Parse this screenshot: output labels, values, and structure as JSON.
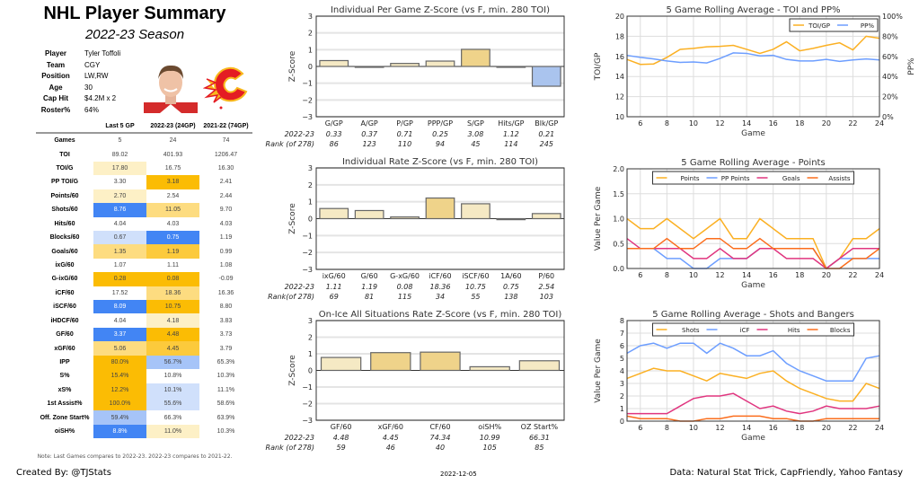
{
  "header": {
    "title": "NHL Player Summary",
    "season": "2022-23 Season"
  },
  "player_info": [
    {
      "label": "Player",
      "value": "Tyler Toffoli"
    },
    {
      "label": "Team",
      "value": "CGY"
    },
    {
      "label": "Position",
      "value": "LW,RW"
    },
    {
      "label": "Age",
      "value": "30"
    },
    {
      "label": "Cap Hit",
      "value": "$4.2M x 2"
    },
    {
      "label": "Roster%",
      "value": "64%"
    }
  ],
  "team_logo": "calgary-flames-logo",
  "table": {
    "columns": [
      "",
      "Last 5 GP",
      "2022-23 (24GP)",
      "2021-22 (74GP)"
    ],
    "rows": [
      {
        "label": "Games",
        "values": [
          "5",
          "24",
          "74"
        ],
        "colors": [
          null,
          null,
          null
        ]
      },
      {
        "label": "TOI",
        "values": [
          "89.02",
          "401.93",
          "1206.47"
        ],
        "colors": [
          null,
          null,
          null
        ]
      },
      {
        "label": "TOI/G",
        "values": [
          "17.80",
          "16.75",
          "16.30"
        ],
        "colors": [
          "#fdf0c6",
          null,
          null
        ]
      },
      {
        "label": "PP TOI/G",
        "values": [
          "3.30",
          "3.18",
          "2.41"
        ],
        "colors": [
          null,
          "#fbbc04",
          null
        ]
      },
      {
        "label": "Points/60",
        "values": [
          "2.70",
          "2.54",
          "2.44"
        ],
        "colors": [
          "#fdf0c6",
          null,
          null
        ]
      },
      {
        "label": "Shots/60",
        "values": [
          "8.76",
          "11.05",
          "9.70"
        ],
        "colors": [
          "#4285f4",
          "#fddc80",
          null
        ]
      },
      {
        "label": "Hits/60",
        "values": [
          "4.04",
          "4.03",
          "4.03"
        ],
        "colors": [
          null,
          null,
          null
        ]
      },
      {
        "label": "Blocks/60",
        "values": [
          "0.67",
          "0.75",
          "1.19"
        ],
        "colors": [
          "#d0e0fb",
          "#4285f4",
          null
        ]
      },
      {
        "label": "Goals/60",
        "values": [
          "1.35",
          "1.19",
          "0.99"
        ],
        "colors": [
          "#fddc80",
          "#fcca3c",
          null
        ]
      },
      {
        "label": "ixG/60",
        "values": [
          "1.07",
          "1.11",
          "1.08"
        ],
        "colors": [
          null,
          null,
          null
        ]
      },
      {
        "label": "G-ixG/60",
        "values": [
          "0.28",
          "0.08",
          "-0.09"
        ],
        "colors": [
          "#fbbc04",
          "#fbbc04",
          null
        ]
      },
      {
        "label": "iCF/60",
        "values": [
          "17.52",
          "18.36",
          "16.36"
        ],
        "colors": [
          null,
          "#fddc80",
          null
        ]
      },
      {
        "label": "iSCF/60",
        "values": [
          "8.09",
          "10.75",
          "8.80"
        ],
        "colors": [
          "#4285f4",
          "#fbbc04",
          null
        ]
      },
      {
        "label": "iHDCF/60",
        "values": [
          "4.04",
          "4.18",
          "3.83"
        ],
        "colors": [
          null,
          "#fdf0c6",
          null
        ]
      },
      {
        "label": "GF/60",
        "values": [
          "3.37",
          "4.48",
          "3.73"
        ],
        "colors": [
          "#4285f4",
          "#fbbc04",
          null
        ]
      },
      {
        "label": "xGF/60",
        "values": [
          "5.06",
          "4.45",
          "3.79"
        ],
        "colors": [
          "#fddc80",
          "#fcca3c",
          null
        ]
      },
      {
        "label": "IPP",
        "values": [
          "80.0%",
          "56.7%",
          "65.3%"
        ],
        "colors": [
          "#fbbc04",
          "#a6c4f8",
          null
        ]
      },
      {
        "label": "S%",
        "values": [
          "15.4%",
          "10.8%",
          "10.3%"
        ],
        "colors": [
          "#fbbc04",
          null,
          null
        ]
      },
      {
        "label": "xS%",
        "values": [
          "12.2%",
          "10.1%",
          "11.1%"
        ],
        "colors": [
          "#fbbc04",
          "#d0e0fb",
          null
        ]
      },
      {
        "label": "1st Assist%",
        "values": [
          "100.0%",
          "55.6%",
          "58.6%"
        ],
        "colors": [
          "#fbbc04",
          "#d0e0fb",
          null
        ]
      },
      {
        "label": "Off. Zone Start%",
        "values": [
          "59.4%",
          "66.3%",
          "63.9%"
        ],
        "colors": [
          "#a6c4f8",
          null,
          null
        ]
      },
      {
        "label": "oiSH%",
        "values": [
          "8.8%",
          "11.0%",
          "10.3%"
        ],
        "colors": [
          "#4285f4",
          "#fdf0c6",
          null
        ]
      }
    ],
    "note": "Note: Last Games compares to 2022-23. 2022-23 compares to 2021-22."
  },
  "footer": {
    "credit": "Created By: @TJStats",
    "date": "2022-12-05",
    "source": "Data: Natural Stat Trick, CapFriendly, Yahoo Fantasy"
  },
  "chart_data": [
    {
      "type": "bar",
      "title": "Individual Per Game Z-Score (vs F, min. 280 TOI)",
      "ylabel": "Z-Score",
      "ylim": [
        -3,
        3
      ],
      "grid": true,
      "categories": [
        "G/GP",
        "A/GP",
        "P/GP",
        "PPP/GP",
        "S/GP",
        "Hits/GP",
        "Blk/GP"
      ],
      "values": [
        0.35,
        -0.05,
        0.18,
        0.32,
        1.02,
        0,
        -1.18
      ],
      "colors": [
        "#f5e9c4",
        "#555555",
        "#f5e9c4",
        "#f5e9c4",
        "#efd38a",
        "#f5e9c4",
        "#aac4ee"
      ],
      "row_labels": [
        "2022-23",
        "Rank (of 278)"
      ],
      "stat_values": [
        "0.33",
        "0.37",
        "0.71",
        "0.25",
        "3.08",
        "1.12",
        "0.21"
      ],
      "ranks": [
        "86",
        "123",
        "110",
        "94",
        "45",
        "114",
        "245"
      ]
    },
    {
      "type": "bar",
      "title": "Individual Rate Z-Score (vs F, min. 280 TOI)",
      "ylabel": "Z-Score",
      "ylim": [
        -3,
        3
      ],
      "grid": true,
      "categories": [
        "ixG/60",
        "G/60",
        "G-xG/60",
        "iCF/60",
        "iSCF/60",
        "1A/60",
        "P/60"
      ],
      "values": [
        0.6,
        0.48,
        0.1,
        1.22,
        0.88,
        -0.06,
        0.3
      ],
      "colors": [
        "#f5e9c4",
        "#f5e9c4",
        "#f5e9c4",
        "#efd38a",
        "#f5e9c4",
        "#555555",
        "#f5e9c4"
      ],
      "row_labels": [
        "2022-23",
        "Rank(of 278)"
      ],
      "stat_values": [
        "1.11",
        "1.19",
        "0.08",
        "18.36",
        "10.75",
        "0.75",
        "2.54"
      ],
      "ranks": [
        "69",
        "81",
        "115",
        "34",
        "55",
        "138",
        "103"
      ]
    },
    {
      "type": "bar",
      "title": "On-Ice All Situations Rate Z-Score (vs F, min. 280 TOI)",
      "ylabel": "Z-Score",
      "ylim": [
        -3,
        3
      ],
      "grid": true,
      "categories": [
        "GF/60",
        "xGF/60",
        "CF/60",
        "oiSH%",
        "OZ Start%"
      ],
      "values": [
        0.78,
        1.07,
        1.1,
        0.22,
        0.58
      ],
      "colors": [
        "#f5e9c4",
        "#efd38a",
        "#efd38a",
        "#f5e9c4",
        "#f5e9c4"
      ],
      "row_labels": [
        "2022-23",
        "Rank (of 278)"
      ],
      "stat_values": [
        "4.48",
        "4.45",
        "74.34",
        "10.99",
        "66.31"
      ],
      "ranks": [
        "59",
        "46",
        "40",
        "105",
        "85"
      ]
    },
    {
      "type": "line",
      "title": "5 Game Rolling Average - TOI and PP%",
      "xlabel": "Game",
      "ylabel": "TOI/GP",
      "y2label": "PP%",
      "xlim": [
        5,
        24
      ],
      "ylim": [
        10,
        20
      ],
      "y2lim": [
        0,
        100
      ],
      "grid": true,
      "legend": "top-right",
      "xticks": [
        6,
        8,
        10,
        12,
        14,
        16,
        18,
        20,
        22,
        24
      ],
      "yticks": [
        10,
        12,
        14,
        16,
        18,
        20
      ],
      "y2ticks": [
        "0%",
        "20%",
        "40%",
        "60%",
        "80%",
        "100%"
      ],
      "x": [
        5,
        6,
        7,
        8,
        9,
        10,
        11,
        12,
        13,
        14,
        15,
        16,
        17,
        18,
        19,
        20,
        21,
        22,
        23,
        24
      ],
      "series": [
        {
          "name": "TOI/GP",
          "color": "#fbb023",
          "axis": "left",
          "values": [
            15.7,
            15.2,
            15.25,
            15.9,
            16.7,
            16.8,
            16.95,
            17.0,
            17.1,
            16.7,
            16.3,
            16.7,
            17.45,
            16.55,
            16.8,
            17.1,
            17.35,
            16.65,
            18.0,
            17.8
          ]
        },
        {
          "name": "PP%",
          "color": "#6d9eff",
          "axis": "right",
          "values": [
            61,
            59,
            57.5,
            55.5,
            54,
            54.5,
            53.5,
            58,
            63.5,
            63,
            60.5,
            61,
            57,
            55.5,
            55.5,
            57,
            55,
            56.5,
            57.5,
            56.5
          ]
        }
      ]
    },
    {
      "type": "line",
      "title": "5 Game Rolling Average - Points",
      "xlabel": "Game",
      "ylabel": "Value Per Game",
      "xlim": [
        5,
        24
      ],
      "ylim": [
        0,
        2
      ],
      "grid": true,
      "legend": "top-center",
      "xticks": [
        6,
        8,
        10,
        12,
        14,
        16,
        18,
        20,
        22,
        24
      ],
      "yticks": [
        "0.0",
        "0.5",
        "1.0",
        "1.5",
        "2.0"
      ],
      "x": [
        5,
        6,
        7,
        8,
        9,
        10,
        11,
        12,
        13,
        14,
        15,
        16,
        17,
        18,
        19,
        20,
        21,
        22,
        23,
        24
      ],
      "series": [
        {
          "name": "Points",
          "color": "#fbb023",
          "values": [
            1.0,
            0.8,
            0.8,
            1.0,
            0.8,
            0.6,
            0.8,
            1.0,
            0.6,
            0.6,
            1.0,
            0.8,
            0.6,
            0.6,
            0.6,
            0.0,
            0.2,
            0.6,
            0.6,
            0.8
          ]
        },
        {
          "name": "PP Points",
          "color": "#6d9eff",
          "values": [
            0.4,
            0.4,
            0.4,
            0.2,
            0.2,
            0.0,
            0.0,
            0.2,
            0.2,
            0.2,
            0.4,
            0.4,
            0.4,
            0.4,
            0.4,
            0.0,
            0.2,
            0.2,
            0.2,
            0.2
          ]
        },
        {
          "name": "Goals",
          "color": "#e0357f",
          "values": [
            0.6,
            0.4,
            0.4,
            0.4,
            0.4,
            0.2,
            0.2,
            0.4,
            0.2,
            0.2,
            0.4,
            0.4,
            0.2,
            0.2,
            0.2,
            0.0,
            0.2,
            0.4,
            0.4,
            0.4
          ]
        },
        {
          "name": "Assists",
          "color": "#fb6d1c",
          "values": [
            0.4,
            0.4,
            0.4,
            0.6,
            0.4,
            0.4,
            0.6,
            0.6,
            0.4,
            0.4,
            0.6,
            0.4,
            0.4,
            0.4,
            0.4,
            0.0,
            0.0,
            0.2,
            0.2,
            0.4
          ]
        }
      ]
    },
    {
      "type": "line",
      "title": "5 Game Rolling Average - Shots and Bangers",
      "xlabel": "Game",
      "ylabel": "Value Per Game",
      "xlim": [
        5,
        24
      ],
      "ylim": [
        0,
        8
      ],
      "grid": true,
      "legend": "top-center",
      "xticks": [
        6,
        8,
        10,
        12,
        14,
        16,
        18,
        20,
        22,
        24
      ],
      "yticks": [
        0,
        1,
        2,
        3,
        4,
        5,
        6,
        7,
        8
      ],
      "x": [
        5,
        6,
        7,
        8,
        9,
        10,
        11,
        12,
        13,
        14,
        15,
        16,
        17,
        18,
        19,
        20,
        21,
        22,
        23,
        24
      ],
      "series": [
        {
          "name": "Shots",
          "color": "#fbb023",
          "values": [
            3.4,
            3.8,
            4.2,
            4.0,
            4.0,
            3.6,
            3.2,
            3.8,
            3.6,
            3.4,
            3.8,
            4.0,
            3.2,
            2.6,
            2.2,
            1.8,
            1.6,
            1.6,
            3.0,
            2.6
          ]
        },
        {
          "name": "iCF",
          "color": "#6d9eff",
          "values": [
            5.4,
            6.0,
            6.2,
            5.8,
            6.2,
            6.2,
            5.4,
            6.2,
            5.8,
            5.2,
            5.2,
            5.6,
            4.6,
            4.0,
            3.6,
            3.2,
            3.2,
            3.2,
            5.0,
            5.2
          ]
        },
        {
          "name": "Hits",
          "color": "#e0357f",
          "values": [
            0.6,
            0.6,
            0.6,
            0.6,
            1.2,
            1.8,
            2.0,
            2.0,
            2.2,
            1.6,
            1.0,
            1.2,
            0.8,
            0.6,
            0.8,
            1.2,
            1.0,
            1.0,
            1.0,
            1.2
          ]
        },
        {
          "name": "Blocks",
          "color": "#fb6d1c",
          "values": [
            0.4,
            0.2,
            0.2,
            0.2,
            0,
            0,
            0.2,
            0.2,
            0.4,
            0.4,
            0.4,
            0.2,
            0.2,
            0,
            0,
            0.2,
            0.2,
            0.2,
            0.2,
            0.2
          ]
        }
      ]
    }
  ]
}
